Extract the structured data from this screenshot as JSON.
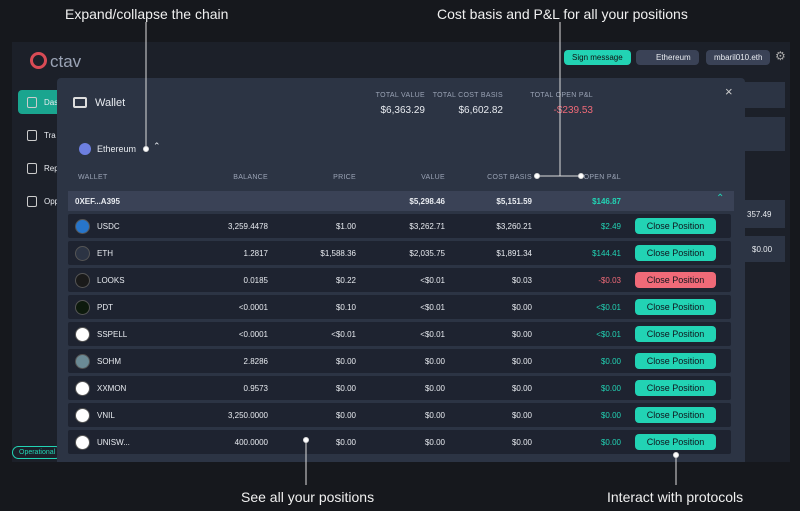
{
  "annotations": {
    "chain": "Expand/collapse the chain",
    "cost": "Cost basis and P&L for all your positions",
    "positions": "See all your positions",
    "protocols": "Interact with protocols"
  },
  "app": {
    "logo": "ctav",
    "sign": "Sign message",
    "network": "Ethereum",
    "account": "mbaril010.eth",
    "nav": [
      "Das",
      "Tra",
      "Rep",
      "Opp"
    ],
    "status": "Operational",
    "side_values": [
      "357.49",
      "$0.00"
    ]
  },
  "modal": {
    "title": "Wallet",
    "summary": [
      {
        "label": "TOTAL VALUE",
        "value": "$6,363.29"
      },
      {
        "label": "TOTAL COST BASIS",
        "value": "$6,602.82"
      },
      {
        "label": "TOTAL OPEN P&L",
        "value": "-$239.53"
      }
    ],
    "chain": "Ethereum",
    "columns": [
      "WALLET",
      "BALANCE",
      "PRICE",
      "VALUE",
      "COST BASIS",
      "OPEN P&L"
    ],
    "wallet": {
      "address": "0XEF...A395",
      "value": "$5,298.46",
      "cost": "$5,151.59",
      "pnl": "$146.87"
    },
    "rows": [
      [
        "USDC",
        "3,259.4478",
        "$1.00",
        "$3,262.71",
        "$3,260.21",
        "$2.49",
        "Close Position"
      ],
      [
        "ETH",
        "1.2817",
        "$1,588.36",
        "$2,035.75",
        "$1,891.34",
        "$144.41",
        "Close Position"
      ],
      [
        "LOOKS",
        "0.0185",
        "$0.22",
        "<$0.01",
        "$0.03",
        "-$0.03",
        "Close Position"
      ],
      [
        "PDT",
        "<0.0001",
        "$0.10",
        "<$0.01",
        "$0.00",
        "<$0.01",
        "Close Position"
      ],
      [
        "SSPELL",
        "<0.0001",
        "<$0.01",
        "<$0.01",
        "$0.00",
        "<$0.01",
        "Close Position"
      ],
      [
        "SOHM",
        "2.8286",
        "$0.00",
        "$0.00",
        "$0.00",
        "$0.00",
        "Close Position"
      ],
      [
        "XXMON",
        "0.9573",
        "$0.00",
        "$0.00",
        "$0.00",
        "$0.00",
        "Close Position"
      ],
      [
        "VNIL",
        "3,250.0000",
        "$0.00",
        "$0.00",
        "$0.00",
        "$0.00",
        "Close Position"
      ],
      [
        "UNISW...",
        "400.0000",
        "$0.00",
        "$0.00",
        "$0.00",
        "$0.00",
        "Close Position"
      ]
    ]
  }
}
